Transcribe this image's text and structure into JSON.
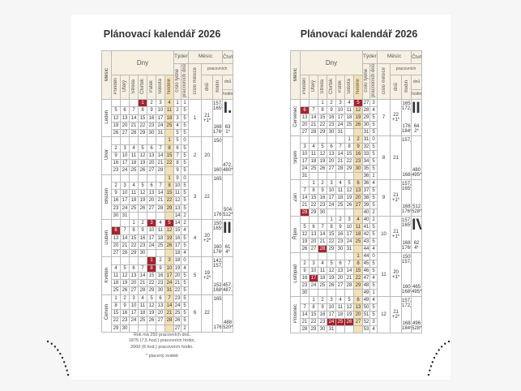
{
  "pages": [
    {
      "title": "Plánovací kalendář 2026",
      "months": [
        {
          "name": "Leden",
          "num": "1",
          "days": "21",
          "days_extra": "+1*",
          "hours_top": [
            "157,5",
            "165*"
          ],
          "hours_bottom": [
            "168",
            "176*"
          ],
          "quarter": {
            "roman": "I.",
            "top": [
              "63",
              "1*"
            ],
            "bottom": []
          },
          "weeks": [
            [
              null,
              null,
              null,
              1,
              2,
              3,
              4
            ],
            [
              5,
              6,
              7,
              8,
              9,
              10,
              11
            ],
            [
              12,
              13,
              14,
              15,
              16,
              17,
              18
            ],
            [
              19,
              20,
              21,
              22,
              23,
              24,
              25
            ],
            [
              26,
              27,
              28,
              29,
              30,
              31,
              null
            ]
          ],
          "week_nums": [
            "1",
            "2",
            "3",
            "4",
            "5"
          ],
          "work_days": [
            "1",
            "5",
            "5",
            "5",
            "5"
          ],
          "holidays": [
            1
          ]
        },
        {
          "name": "Únor",
          "num": "2",
          "days": "20",
          "days_extra": "",
          "hours_top": [
            "150"
          ],
          "hours_bottom": [
            "160"
          ],
          "quarter": {
            "roman": "",
            "top": [],
            "bottom": [
              "472,5",
              "480*"
            ]
          },
          "weeks": [
            [
              null,
              null,
              null,
              null,
              null,
              null,
              1
            ],
            [
              2,
              3,
              4,
              5,
              6,
              7,
              8
            ],
            [
              9,
              10,
              11,
              12,
              13,
              14,
              15
            ],
            [
              16,
              17,
              18,
              19,
              20,
              21,
              22
            ],
            [
              23,
              24,
              25,
              26,
              27,
              28,
              null
            ]
          ],
          "week_nums": [
            "5",
            "6",
            "7",
            "8",
            "9"
          ],
          "work_days": [
            "0",
            "5",
            "5",
            "5",
            "5"
          ],
          "holidays": []
        },
        {
          "name": "Březen",
          "num": "3",
          "days": "22",
          "days_extra": "",
          "hours_top": [
            "165"
          ],
          "hours_bottom": [
            "176"
          ],
          "quarter": {
            "roman": "",
            "top": [],
            "bottom": [
              "504",
              "512*"
            ]
          },
          "weeks": [
            [
              null,
              null,
              null,
              null,
              null,
              null,
              1
            ],
            [
              2,
              3,
              4,
              5,
              6,
              7,
              8
            ],
            [
              9,
              10,
              11,
              12,
              13,
              14,
              15
            ],
            [
              16,
              17,
              18,
              19,
              20,
              21,
              22
            ],
            [
              23,
              24,
              25,
              26,
              27,
              28,
              29
            ],
            [
              30,
              31,
              null,
              null,
              null,
              null,
              null
            ]
          ],
          "week_nums": [
            "9",
            "10",
            "11",
            "12",
            "13",
            "14"
          ],
          "work_days": [
            "0",
            "5",
            "5",
            "5",
            "5",
            "2"
          ],
          "holidays": []
        },
        {
          "name": "Duben",
          "num": "4",
          "days": "20",
          "days_extra": "+2*",
          "hours_top": [
            "150",
            "165*"
          ],
          "hours_bottom": [
            "160",
            "176*"
          ],
          "quarter": {
            "roman": "II.",
            "top": [
              "61",
              "4*"
            ],
            "bottom": []
          },
          "weeks": [
            [
              null,
              null,
              1,
              2,
              3,
              4,
              5
            ],
            [
              6,
              7,
              8,
              9,
              10,
              11,
              12
            ],
            [
              13,
              14,
              15,
              16,
              17,
              18,
              19
            ],
            [
              20,
              21,
              22,
              23,
              24,
              25,
              26
            ],
            [
              27,
              28,
              29,
              30,
              null,
              null,
              null
            ]
          ],
          "week_nums": [
            "14",
            "15",
            "16",
            "17",
            "18"
          ],
          "work_days": [
            "2",
            "4",
            "5",
            "5",
            "4"
          ],
          "holidays": [
            3,
            5,
            6
          ]
        },
        {
          "name": "Květen",
          "num": "5",
          "days": "19",
          "days_extra": "+2*",
          "hours_top": [
            "142,5",
            "157,5*"
          ],
          "hours_bottom": [
            "152",
            "168*"
          ],
          "quarter": {
            "roman": "",
            "top": [],
            "bottom": [
              "457,5",
              "487,5*"
            ]
          },
          "weeks": [
            [
              null,
              null,
              null,
              null,
              1,
              2,
              3
            ],
            [
              4,
              5,
              6,
              7,
              8,
              9,
              10
            ],
            [
              11,
              12,
              13,
              14,
              15,
              16,
              17
            ],
            [
              18,
              19,
              20,
              21,
              22,
              23,
              24
            ],
            [
              25,
              26,
              27,
              28,
              29,
              30,
              31
            ]
          ],
          "week_nums": [
            "18",
            "19",
            "20",
            "21",
            "22"
          ],
          "work_days": [
            "0",
            "4",
            "5",
            "5",
            "5"
          ],
          "holidays": [
            1,
            8
          ]
        },
        {
          "name": "Červen",
          "num": "6",
          "days": "22",
          "days_extra": "",
          "hours_top": [
            "165"
          ],
          "hours_bottom": [
            "176"
          ],
          "quarter": {
            "roman": "",
            "top": [],
            "bottom": [
              "488",
              "520*"
            ]
          },
          "weeks": [
            [
              1,
              2,
              3,
              4,
              5,
              6,
              7
            ],
            [
              8,
              9,
              10,
              11,
              12,
              13,
              14
            ],
            [
              15,
              16,
              17,
              18,
              19,
              20,
              21
            ],
            [
              22,
              23,
              24,
              25,
              26,
              27,
              28
            ],
            [
              29,
              30,
              null,
              null,
              null,
              null,
              null
            ]
          ],
          "week_nums": [
            "23",
            "24",
            "25",
            "26",
            "27"
          ],
          "work_days": [
            "5",
            "5",
            "5",
            "5",
            "2"
          ],
          "holidays": []
        }
      ],
      "notes": [
        "Rok má 250 pracovních dnů,",
        "1875 (7,5 hod.) pracovních hodin,",
        "2000 (8 hod.) pracovních hodin."
      ],
      "footnote": "* placený svátek"
    },
    {
      "title": "Plánovací kalendář 2026",
      "months": [
        {
          "name": "Červenec",
          "num": "7",
          "days": "22",
          "days_extra": "+1*",
          "hours_top": [
            "165",
            "172,5*"
          ],
          "hours_bottom": [
            "176",
            "184*"
          ],
          "quarter": {
            "roman": "III.",
            "top": [
              "64",
              "2*"
            ],
            "bottom": []
          },
          "weeks": [
            [
              null,
              null,
              1,
              2,
              3,
              4,
              5
            ],
            [
              6,
              7,
              8,
              9,
              10,
              11,
              12
            ],
            [
              13,
              14,
              15,
              16,
              17,
              18,
              19
            ],
            [
              20,
              21,
              22,
              23,
              24,
              25,
              26
            ],
            [
              27,
              28,
              29,
              30,
              31,
              null,
              null
            ]
          ],
          "week_nums": [
            "27",
            "28",
            "29",
            "30",
            "31"
          ],
          "work_days": [
            "3",
            "4",
            "5",
            "5",
            "5"
          ],
          "holidays": [
            5,
            6
          ]
        },
        {
          "name": "Srpen",
          "num": "8",
          "days": "21",
          "days_extra": "",
          "hours_top": [
            "157,5"
          ],
          "hours_bottom": [
            "168"
          ],
          "quarter": {
            "roman": "",
            "top": [],
            "bottom": [
              "480",
              "495*"
            ]
          },
          "weeks": [
            [
              null,
              null,
              null,
              null,
              null,
              1,
              2
            ],
            [
              3,
              4,
              5,
              6,
              7,
              8,
              9
            ],
            [
              10,
              11,
              12,
              13,
              14,
              15,
              16
            ],
            [
              17,
              18,
              19,
              20,
              21,
              22,
              23
            ],
            [
              24,
              25,
              26,
              27,
              28,
              29,
              30
            ],
            [
              31,
              null,
              null,
              null,
              null,
              null,
              null
            ]
          ],
          "week_nums": [
            "31",
            "32",
            "33",
            "34",
            "35",
            "36"
          ],
          "work_days": [
            "0",
            "5",
            "5",
            "5",
            "5",
            "1"
          ],
          "holidays": []
        },
        {
          "name": "Září",
          "num": "9",
          "days": "21",
          "days_extra": "+1*",
          "hours_top": [
            "157,5",
            "165*"
          ],
          "hours_bottom": [
            "168",
            "176*"
          ],
          "quarter": {
            "roman": "",
            "top": [],
            "bottom": [
              "512",
              "528*"
            ]
          },
          "weeks": [
            [
              null,
              1,
              2,
              3,
              4,
              5,
              6
            ],
            [
              7,
              8,
              9,
              10,
              11,
              12,
              13
            ],
            [
              14,
              15,
              16,
              17,
              18,
              19,
              20
            ],
            [
              21,
              22,
              23,
              24,
              25,
              26,
              27
            ],
            [
              28,
              29,
              30,
              null,
              null,
              null,
              null
            ]
          ],
          "week_nums": [
            "36",
            "37",
            "38",
            "39",
            "40"
          ],
          "work_days": [
            "4",
            "5",
            "5",
            "5",
            "2"
          ],
          "holidays": [
            28
          ]
        },
        {
          "name": "Říjen",
          "num": "10",
          "days": "21",
          "days_extra": "+1*",
          "hours_top": [
            "157,5",
            "165*"
          ],
          "hours_bottom": [
            "168",
            "176*"
          ],
          "quarter": {
            "roman": "IV.",
            "top": [
              "62",
              "4*"
            ],
            "bottom": []
          },
          "weeks": [
            [
              null,
              null,
              null,
              1,
              2,
              3,
              4
            ],
            [
              5,
              6,
              7,
              8,
              9,
              10,
              11
            ],
            [
              12,
              13,
              14,
              15,
              16,
              17,
              18
            ],
            [
              19,
              20,
              21,
              22,
              23,
              24,
              25
            ],
            [
              26,
              27,
              28,
              29,
              30,
              31,
              null
            ]
          ],
          "week_nums": [
            "40",
            "41",
            "42",
            "43",
            "44"
          ],
          "work_days": [
            "2",
            "5",
            "5",
            "5",
            "4"
          ],
          "holidays": [
            28
          ]
        },
        {
          "name": "Listopad",
          "num": "11",
          "days": "20",
          "days_extra": "+1*",
          "hours_top": [
            "150",
            "157,5*"
          ],
          "hours_bottom": [
            "160",
            "168*"
          ],
          "quarter": {
            "roman": "",
            "top": [],
            "bottom": [
              "465",
              "495*"
            ]
          },
          "weeks": [
            [
              null,
              null,
              null,
              null,
              null,
              null,
              1
            ],
            [
              2,
              3,
              4,
              5,
              6,
              7,
              8
            ],
            [
              9,
              10,
              11,
              12,
              13,
              14,
              15
            ],
            [
              16,
              17,
              18,
              19,
              20,
              21,
              22
            ],
            [
              23,
              24,
              25,
              26,
              27,
              28,
              29
            ],
            [
              30,
              null,
              null,
              null,
              null,
              null,
              null
            ]
          ],
          "week_nums": [
            "44",
            "45",
            "46",
            "47",
            "48",
            "49"
          ],
          "work_days": [
            "0",
            "5",
            "5",
            "4",
            "5",
            "1"
          ],
          "holidays": [
            17
          ]
        },
        {
          "name": "Prosinec",
          "num": "12",
          "days": "21",
          "days_extra": "+2*",
          "hours_top": [
            "157,5",
            "172,5*"
          ],
          "hours_bottom": [
            "168",
            "184*"
          ],
          "quarter": {
            "roman": "",
            "top": [],
            "bottom": [
              "496",
              "528*"
            ]
          },
          "weeks": [
            [
              null,
              1,
              2,
              3,
              4,
              5,
              6
            ],
            [
              7,
              8,
              9,
              10,
              11,
              12,
              13
            ],
            [
              14,
              15,
              16,
              17,
              18,
              19,
              20
            ],
            [
              21,
              22,
              23,
              24,
              25,
              26,
              27
            ],
            [
              28,
              29,
              30,
              31,
              null,
              null,
              null
            ]
          ],
          "week_nums": [
            "49",
            "50",
            "51",
            "52",
            "53"
          ],
          "work_days": [
            "4",
            "5",
            "5",
            "3",
            "4"
          ],
          "holidays": [
            24,
            25,
            26
          ]
        }
      ]
    }
  ],
  "header": {
    "month": "Měsíc",
    "days": "Dny",
    "weekdays": [
      "Pondělí",
      "Úterý",
      "Středa",
      "Čtvrtek",
      "Pátek",
      "Sobota",
      "Neděle"
    ],
    "week": "Týden",
    "week_num": "číslo týdne",
    "week_workdays": "pracovních dnů",
    "month_group": "Měsíc",
    "month_num": "číslo měsíce",
    "working": "pracovních",
    "dni": "dnů",
    "hodin": "hodin",
    "quarter": "Čtvrt.",
    "q_days": "dnů",
    "q_hours": "hodin"
  },
  "colors": {
    "holiday": "#a6222e",
    "sunday": "#f3e1b5",
    "header": "#f6f0e2"
  }
}
